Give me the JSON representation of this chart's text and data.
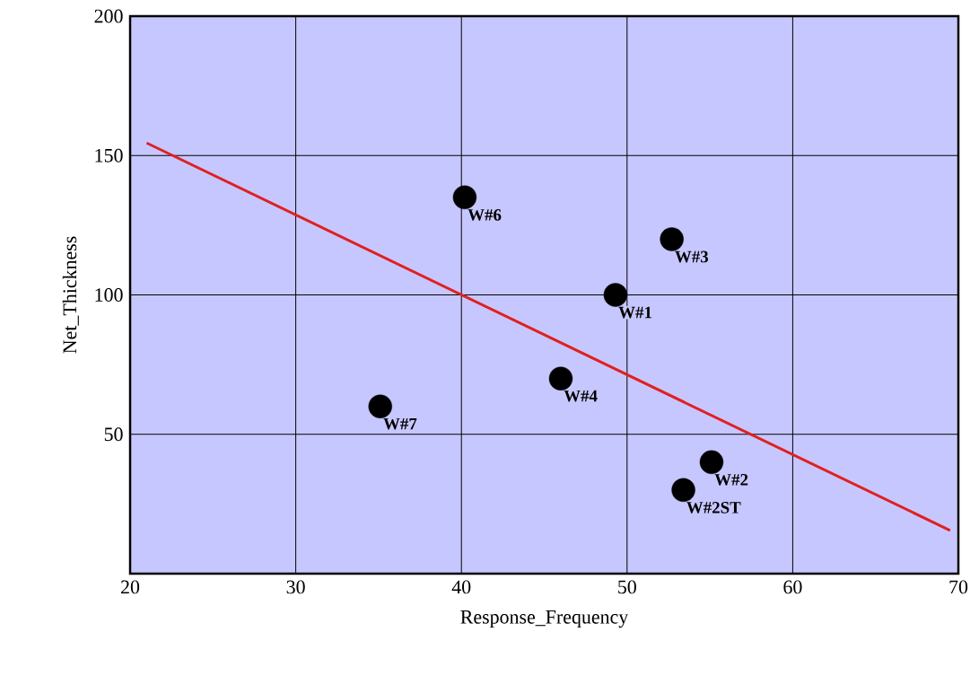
{
  "chart_data": {
    "type": "scatter",
    "xlabel": "Response_Frequency",
    "ylabel": "Net_Thickness",
    "xlim": [
      20,
      70
    ],
    "xticks": [
      20,
      30,
      40,
      50,
      60,
      70
    ],
    "ylim": [
      0,
      200
    ],
    "yticks": [
      50,
      100,
      150,
      200
    ],
    "grid": true,
    "series": [
      {
        "color": "#000000",
        "marker": "circle",
        "x": [
          40.2,
          52.7,
          49.3,
          46.0,
          35.1,
          55.1,
          53.4
        ],
        "values": [
          135,
          120,
          100,
          70,
          60,
          40,
          30
        ]
      },
      {
        "type": "line",
        "color": "#e02020",
        "x": [
          21,
          69.5
        ],
        "values": [
          154.5,
          15.5
        ]
      }
    ],
    "annotations": [
      {
        "text": "W#6",
        "x": 40.2,
        "y": 135
      },
      {
        "text": "W#3",
        "x": 52.7,
        "y": 120
      },
      {
        "text": "W#1",
        "x": 49.3,
        "y": 100
      },
      {
        "text": "W#4",
        "x": 46.0,
        "y": 70
      },
      {
        "text": "W#7",
        "x": 35.1,
        "y": 60
      },
      {
        "text": "W#2",
        "x": 55.1,
        "y": 40
      },
      {
        "text": "W#2ST",
        "x": 53.4,
        "y": 30
      }
    ]
  }
}
